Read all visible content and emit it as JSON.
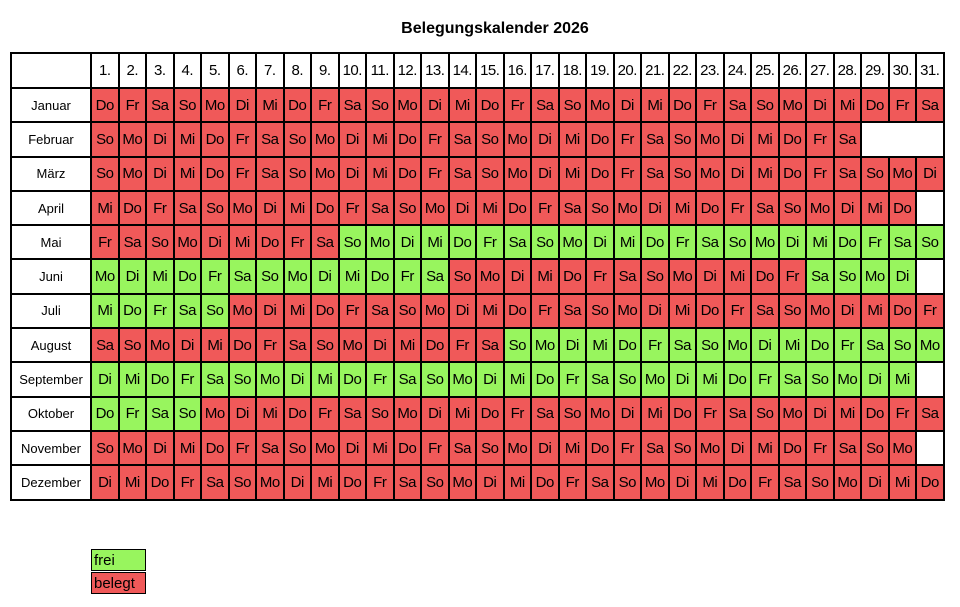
{
  "title": "Belegungskalender 2026",
  "colors": {
    "frei": "#98f55e",
    "belegt": "#f05959"
  },
  "legend": {
    "frei": "frei",
    "belegt": "belegt"
  },
  "day_headers": [
    "1.",
    "2.",
    "3.",
    "4.",
    "5.",
    "6.",
    "7.",
    "8.",
    "9.",
    "10.",
    "11.",
    "12.",
    "13.",
    "14.",
    "15.",
    "16.",
    "17.",
    "18.",
    "19.",
    "20.",
    "21.",
    "22.",
    "23.",
    "24.",
    "25.",
    "26.",
    "27.",
    "28.",
    "29.",
    "30.",
    "31."
  ],
  "months": [
    {
      "name": "Januar",
      "frei_ranges": [],
      "days": [
        "Do",
        "Fr",
        "Sa",
        "So",
        "Mo",
        "Di",
        "Mi",
        "Do",
        "Fr",
        "Sa",
        "So",
        "Mo",
        "Di",
        "Mi",
        "Do",
        "Fr",
        "Sa",
        "So",
        "Mo",
        "Di",
        "Mi",
        "Do",
        "Fr",
        "Sa",
        "So",
        "Mo",
        "Di",
        "Mi",
        "Do",
        "Fr",
        "Sa"
      ]
    },
    {
      "name": "Februar",
      "frei_ranges": [],
      "days": [
        "So",
        "Mo",
        "Di",
        "Mi",
        "Do",
        "Fr",
        "Sa",
        "So",
        "Mo",
        "Di",
        "Mi",
        "Do",
        "Fr",
        "Sa",
        "So",
        "Mo",
        "Di",
        "Mi",
        "Do",
        "Fr",
        "Sa",
        "So",
        "Mo",
        "Di",
        "Mi",
        "Do",
        "Fr",
        "Sa"
      ]
    },
    {
      "name": "März",
      "frei_ranges": [],
      "days": [
        "So",
        "Mo",
        "Di",
        "Mi",
        "Do",
        "Fr",
        "Sa",
        "So",
        "Mo",
        "Di",
        "Mi",
        "Do",
        "Fr",
        "Sa",
        "So",
        "Mo",
        "Di",
        "Mi",
        "Do",
        "Fr",
        "Sa",
        "So",
        "Mo",
        "Di",
        "Mi",
        "Do",
        "Fr",
        "Sa",
        "So",
        "Mo",
        "Di"
      ]
    },
    {
      "name": "April",
      "frei_ranges": [],
      "days": [
        "Mi",
        "Do",
        "Fr",
        "Sa",
        "So",
        "Mo",
        "Di",
        "Mi",
        "Do",
        "Fr",
        "Sa",
        "So",
        "Mo",
        "Di",
        "Mi",
        "Do",
        "Fr",
        "Sa",
        "So",
        "Mo",
        "Di",
        "Mi",
        "Do",
        "Fr",
        "Sa",
        "So",
        "Mo",
        "Di",
        "Mi",
        "Do"
      ]
    },
    {
      "name": "Mai",
      "frei_ranges": [
        [
          10,
          31
        ]
      ],
      "days": [
        "Fr",
        "Sa",
        "So",
        "Mo",
        "Di",
        "Mi",
        "Do",
        "Fr",
        "Sa",
        "So",
        "Mo",
        "Di",
        "Mi",
        "Do",
        "Fr",
        "Sa",
        "So",
        "Mo",
        "Di",
        "Mi",
        "Do",
        "Fr",
        "Sa",
        "So",
        "Mo",
        "Di",
        "Mi",
        "Do",
        "Fr",
        "Sa",
        "So"
      ]
    },
    {
      "name": "Juni",
      "frei_ranges": [
        [
          1,
          13
        ],
        [
          27,
          30
        ]
      ],
      "days": [
        "Mo",
        "Di",
        "Mi",
        "Do",
        "Fr",
        "Sa",
        "So",
        "Mo",
        "Di",
        "Mi",
        "Do",
        "Fr",
        "Sa",
        "So",
        "Mo",
        "Di",
        "Mi",
        "Do",
        "Fr",
        "Sa",
        "So",
        "Mo",
        "Di",
        "Mi",
        "Do",
        "Fr",
        "Sa",
        "So",
        "Mo",
        "Di"
      ]
    },
    {
      "name": "Juli",
      "frei_ranges": [
        [
          1,
          5
        ]
      ],
      "days": [
        "Mi",
        "Do",
        "Fr",
        "Sa",
        "So",
        "Mo",
        "Di",
        "Mi",
        "Do",
        "Fr",
        "Sa",
        "So",
        "Mo",
        "Di",
        "Mi",
        "Do",
        "Fr",
        "Sa",
        "So",
        "Mo",
        "Di",
        "Mi",
        "Do",
        "Fr",
        "Sa",
        "So",
        "Mo",
        "Di",
        "Mi",
        "Do",
        "Fr"
      ]
    },
    {
      "name": "August",
      "frei_ranges": [
        [
          16,
          31
        ]
      ],
      "days": [
        "Sa",
        "So",
        "Mo",
        "Di",
        "Mi",
        "Do",
        "Fr",
        "Sa",
        "So",
        "Mo",
        "Di",
        "Mi",
        "Do",
        "Fr",
        "Sa",
        "So",
        "Mo",
        "Di",
        "Mi",
        "Do",
        "Fr",
        "Sa",
        "So",
        "Mo",
        "Di",
        "Mi",
        "Do",
        "Fr",
        "Sa",
        "So",
        "Mo"
      ]
    },
    {
      "name": "September",
      "frei_ranges": [
        [
          1,
          30
        ]
      ],
      "days": [
        "Di",
        "Mi",
        "Do",
        "Fr",
        "Sa",
        "So",
        "Mo",
        "Di",
        "Mi",
        "Do",
        "Fr",
        "Sa",
        "So",
        "Mo",
        "Di",
        "Mi",
        "Do",
        "Fr",
        "Sa",
        "So",
        "Mo",
        "Di",
        "Mi",
        "Do",
        "Fr",
        "Sa",
        "So",
        "Mo",
        "Di",
        "Mi"
      ]
    },
    {
      "name": "Oktober",
      "frei_ranges": [
        [
          1,
          4
        ]
      ],
      "days": [
        "Do",
        "Fr",
        "Sa",
        "So",
        "Mo",
        "Di",
        "Mi",
        "Do",
        "Fr",
        "Sa",
        "So",
        "Mo",
        "Di",
        "Mi",
        "Do",
        "Fr",
        "Sa",
        "So",
        "Mo",
        "Di",
        "Mi",
        "Do",
        "Fr",
        "Sa",
        "So",
        "Mo",
        "Di",
        "Mi",
        "Do",
        "Fr",
        "Sa"
      ]
    },
    {
      "name": "November",
      "frei_ranges": [],
      "days": [
        "So",
        "Mo",
        "Di",
        "Mi",
        "Do",
        "Fr",
        "Sa",
        "So",
        "Mo",
        "Di",
        "Mi",
        "Do",
        "Fr",
        "Sa",
        "So",
        "Mo",
        "Di",
        "Mi",
        "Do",
        "Fr",
        "Sa",
        "So",
        "Mo",
        "Di",
        "Mi",
        "Do",
        "Fr",
        "Sa",
        "So",
        "Mo"
      ]
    },
    {
      "name": "Dezember",
      "frei_ranges": [],
      "days": [
        "Di",
        "Mi",
        "Do",
        "Fr",
        "Sa",
        "So",
        "Mo",
        "Di",
        "Mi",
        "Do",
        "Fr",
        "Sa",
        "So",
        "Mo",
        "Di",
        "Mi",
        "Do",
        "Fr",
        "Sa",
        "So",
        "Mo",
        "Di",
        "Mi",
        "Do",
        "Fr",
        "Sa",
        "So",
        "Mo",
        "Di",
        "Mi",
        "Do"
      ]
    }
  ]
}
